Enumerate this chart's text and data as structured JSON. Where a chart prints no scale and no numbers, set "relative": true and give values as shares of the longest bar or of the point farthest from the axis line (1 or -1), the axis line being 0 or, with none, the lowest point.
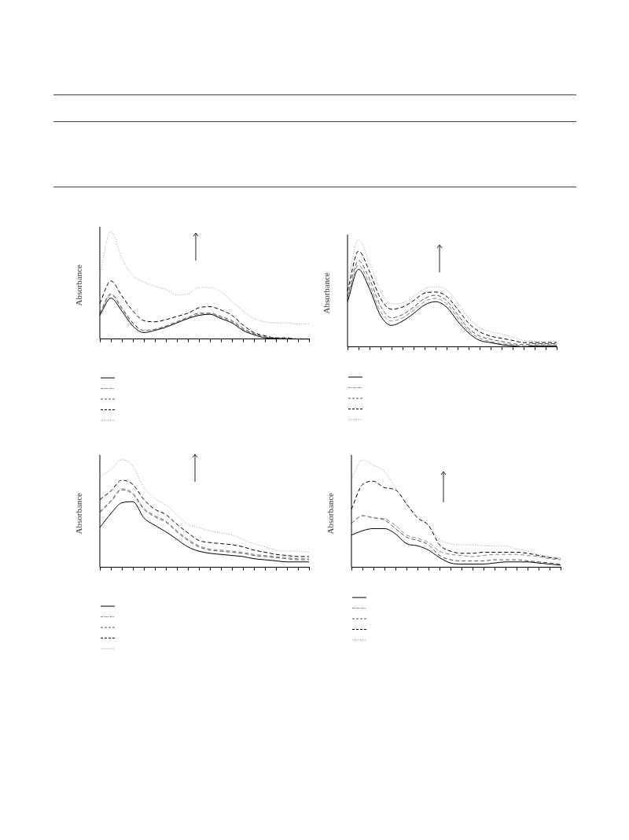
{
  "chart_data": [
    {
      "type": "line",
      "relative": true,
      "ylabel": "Absorbance",
      "grid": false,
      "marker": "none",
      "categories": [
        null,
        null,
        null,
        null,
        null,
        null,
        null,
        null,
        null,
        null,
        null,
        null,
        null,
        null,
        null,
        null,
        null,
        null,
        null,
        null
      ],
      "series": [
        {
          "color": "#000000",
          "line_style": "solid",
          "values": [
            0.22,
            0.38,
            0.26,
            0.12,
            0.06,
            0.08,
            0.11,
            0.15,
            0.19,
            0.22,
            0.23,
            0.19,
            0.15,
            0.08,
            0.04,
            0.01,
            0.005,
            0,
            0,
            0
          ]
        },
        {
          "color": "#888888",
          "line_style": "dashed",
          "values": [
            0.23,
            0.41,
            0.28,
            0.14,
            0.08,
            0.09,
            0.12,
            0.16,
            0.2,
            0.23,
            0.24,
            0.2,
            0.16,
            0.09,
            0.05,
            0.02,
            0.01,
            0,
            0,
            0
          ]
        },
        {
          "color": "#555555",
          "line_style": "dashed",
          "values": [
            0.24,
            0.42,
            0.29,
            0.15,
            0.08,
            0.09,
            0.12,
            0.16,
            0.2,
            0.24,
            0.24,
            0.21,
            0.17,
            0.1,
            0.05,
            0.02,
            0.01,
            0.01,
            0,
            0
          ]
        },
        {
          "color": "#000000",
          "line_style": "dashed",
          "values": [
            0.33,
            0.54,
            0.4,
            0.26,
            0.17,
            0.16,
            0.18,
            0.21,
            0.24,
            0.29,
            0.3,
            0.27,
            0.22,
            0.13,
            0.06,
            0.03,
            0.01,
            0.01,
            0,
            0
          ]
        },
        {
          "color": "#999999",
          "line_style": "dotted",
          "values": [
            0.6,
            1.0,
            0.75,
            0.59,
            0.53,
            0.49,
            0.46,
            0.41,
            0.42,
            0.48,
            0.48,
            0.44,
            0.35,
            0.26,
            0.19,
            0.16,
            0.15,
            0.15,
            0.14,
            0.14
          ]
        }
      ]
    },
    {
      "type": "line",
      "relative": true,
      "ylabel": "Absorbance",
      "grid": false,
      "marker": "none",
      "categories": [
        null,
        null,
        null,
        null,
        null,
        null,
        null,
        null,
        null,
        null,
        null,
        null,
        null,
        null,
        null,
        null,
        null,
        null,
        null,
        null
      ],
      "series": [
        {
          "color": "#000000",
          "line_style": "solid",
          "values": [
            0.42,
            0.72,
            0.54,
            0.29,
            0.2,
            0.24,
            0.31,
            0.39,
            0.42,
            0.37,
            0.24,
            0.13,
            0.06,
            0.04,
            0.02,
            0.01,
            0,
            0.01,
            0.01,
            0.01
          ]
        },
        {
          "color": "#888888",
          "line_style": "dashed",
          "values": [
            0.44,
            0.76,
            0.58,
            0.33,
            0.24,
            0.27,
            0.34,
            0.42,
            0.45,
            0.4,
            0.27,
            0.15,
            0.08,
            0.05,
            0.03,
            0.02,
            0.01,
            0.02,
            0.02,
            0.02
          ]
        },
        {
          "color": "#555555",
          "line_style": "dashed",
          "values": [
            0.47,
            0.8,
            0.63,
            0.38,
            0.27,
            0.3,
            0.37,
            0.45,
            0.48,
            0.43,
            0.3,
            0.17,
            0.1,
            0.07,
            0.05,
            0.03,
            0.02,
            0.03,
            0.03,
            0.03
          ]
        },
        {
          "color": "#000000",
          "line_style": "dashed",
          "values": [
            0.52,
            0.89,
            0.7,
            0.45,
            0.35,
            0.37,
            0.43,
            0.5,
            0.51,
            0.47,
            0.35,
            0.22,
            0.14,
            0.1,
            0.08,
            0.06,
            0.04,
            0.04,
            0.04,
            0.04
          ]
        },
        {
          "color": "#999999",
          "line_style": "dotted",
          "values": [
            0.58,
            1.0,
            0.78,
            0.52,
            0.4,
            0.41,
            0.47,
            0.54,
            0.56,
            0.53,
            0.41,
            0.27,
            0.18,
            0.14,
            0.12,
            0.09,
            0.06,
            0.05,
            0.05,
            0.05
          ]
        }
      ]
    },
    {
      "type": "line",
      "relative": true,
      "ylabel": "Absorbance",
      "grid": false,
      "marker": "none",
      "categories": [
        null,
        null,
        null,
        null,
        null,
        null,
        null,
        null,
        null,
        null,
        null,
        null,
        null,
        null,
        null,
        null,
        null,
        null,
        null,
        null
      ],
      "series": [
        {
          "color": "#000000",
          "line_style": "solid",
          "values": [
            0.37,
            0.5,
            0.6,
            0.61,
            0.46,
            0.39,
            0.33,
            0.26,
            0.19,
            0.15,
            0.13,
            0.12,
            0.11,
            0.1,
            0.08,
            0.07,
            0.06,
            0.05,
            0.05,
            0.05
          ]
        },
        {
          "color": "#888888",
          "line_style": "dashed",
          "values": [
            0.52,
            0.62,
            0.73,
            0.69,
            0.55,
            0.48,
            0.43,
            0.34,
            0.26,
            0.2,
            0.17,
            0.16,
            0.15,
            0.14,
            0.12,
            0.11,
            0.1,
            0.09,
            0.08,
            0.08
          ]
        },
        {
          "color": "#555555",
          "line_style": "dashed",
          "values": [
            0.51,
            0.61,
            0.72,
            0.68,
            0.54,
            0.47,
            0.42,
            0.33,
            0.25,
            0.19,
            0.16,
            0.15,
            0.14,
            0.13,
            0.11,
            0.1,
            0.09,
            0.08,
            0.07,
            0.07
          ]
        },
        {
          "color": "#000000",
          "line_style": "dashed",
          "values": [
            0.63,
            0.71,
            0.81,
            0.77,
            0.63,
            0.54,
            0.49,
            0.4,
            0.32,
            0.25,
            0.23,
            0.22,
            0.21,
            0.19,
            0.16,
            0.14,
            0.12,
            0.11,
            0.1,
            0.1
          ]
        },
        {
          "color": "#999999",
          "line_style": "dotted",
          "values": [
            0.84,
            0.91,
            1.0,
            0.94,
            0.74,
            0.64,
            0.58,
            0.49,
            0.4,
            0.37,
            0.34,
            0.32,
            0.3,
            0.26,
            0.22,
            0.19,
            0.16,
            0.15,
            0.15,
            0.14
          ]
        }
      ]
    },
    {
      "type": "line",
      "relative": true,
      "ylabel": "Absorbance",
      "grid": false,
      "marker": "none",
      "categories": [
        null,
        null,
        null,
        null,
        null,
        null,
        null,
        null,
        null,
        null,
        null,
        null,
        null,
        null,
        null,
        null,
        null,
        null,
        null,
        null
      ],
      "series": [
        {
          "color": "#000000",
          "line_style": "solid",
          "values": [
            0.3,
            0.34,
            0.36,
            0.36,
            0.31,
            0.22,
            0.2,
            0.16,
            0.09,
            0.04,
            0.03,
            0.03,
            0.03,
            0.04,
            0.05,
            0.05,
            0.05,
            0.04,
            0.03,
            0.02
          ]
        },
        {
          "color": "#888888",
          "line_style": "dashed",
          "values": [
            0.41,
            0.48,
            0.46,
            0.45,
            0.39,
            0.3,
            0.27,
            0.23,
            0.15,
            0.12,
            0.11,
            0.1,
            0.11,
            0.12,
            0.12,
            0.12,
            0.11,
            0.1,
            0.08,
            0.07
          ]
        },
        {
          "color": "#555555",
          "line_style": "dashed",
          "values": [
            0.41,
            0.48,
            0.46,
            0.44,
            0.36,
            0.28,
            0.25,
            0.21,
            0.11,
            0.07,
            0.06,
            0.06,
            0.06,
            0.07,
            0.07,
            0.07,
            0.06,
            0.05,
            0.04,
            0.03
          ]
        },
        {
          "color": "#000000",
          "line_style": "dashed",
          "values": [
            0.54,
            0.77,
            0.8,
            0.74,
            0.72,
            0.59,
            0.46,
            0.39,
            0.21,
            0.15,
            0.13,
            0.13,
            0.14,
            0.14,
            0.14,
            0.14,
            0.13,
            0.11,
            0.09,
            0.08
          ]
        },
        {
          "color": "#999999",
          "line_style": "dotted",
          "values": [
            0.82,
            1.0,
            0.95,
            0.89,
            0.74,
            0.59,
            0.48,
            0.39,
            0.26,
            0.22,
            0.21,
            0.21,
            0.2,
            0.2,
            0.2,
            0.17,
            0.15,
            0.12,
            0.1,
            0.09
          ]
        }
      ]
    }
  ]
}
